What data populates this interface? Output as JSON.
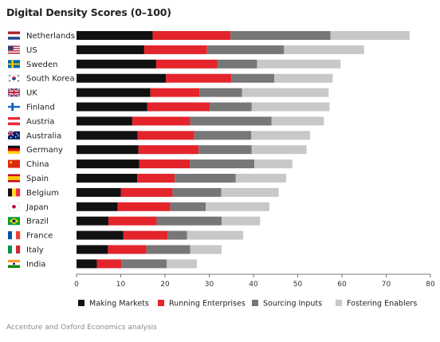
{
  "chart_data": {
    "type": "bar",
    "stacked": true,
    "orientation": "horizontal",
    "title": "Digital Density Scores (0–100)",
    "xlim": [
      0,
      80
    ],
    "xticks": [
      "0",
      "10",
      "20",
      "30",
      "40",
      "50",
      "60",
      "70",
      "80"
    ],
    "grid": false,
    "legend_position": "bottom",
    "source_note": "Accenture and Oxford Economics analysis",
    "categories": [
      "Netherlands",
      "US",
      "Sweden",
      "South Korea",
      "UK",
      "Finland",
      "Austria",
      "Australia",
      "Germany",
      "China",
      "Spain",
      "Belgium",
      "Japan",
      "Brazil",
      "France",
      "Italy",
      "India"
    ],
    "flag_icons": [
      "netherlands-flag-icon",
      "us-flag-icon",
      "sweden-flag-icon",
      "south-korea-flag-icon",
      "uk-flag-icon",
      "finland-flag-icon",
      "austria-flag-icon",
      "australia-flag-icon",
      "germany-flag-icon",
      "china-flag-icon",
      "spain-flag-icon",
      "belgium-flag-icon",
      "japan-flag-icon",
      "brazil-flag-icon",
      "france-flag-icon",
      "italy-flag-icon",
      "india-flag-icon"
    ],
    "series": [
      {
        "name": "Making Markets",
        "color": "#111111",
        "values": [
          17.2,
          15.3,
          18.0,
          20.2,
          16.7,
          16.0,
          12.6,
          13.8,
          14.0,
          14.2,
          13.7,
          10.0,
          9.3,
          7.2,
          10.6,
          7.1,
          4.6
        ]
      },
      {
        "name": "Running Enterprises",
        "color": "#e3242b",
        "values": [
          17.6,
          14.2,
          13.8,
          14.8,
          11.1,
          14.1,
          13.1,
          12.8,
          13.6,
          11.4,
          8.5,
          11.7,
          11.9,
          10.9,
          10.0,
          8.7,
          5.5
        ]
      },
      {
        "name": "Sourcing Inputs",
        "color": "#777777",
        "values": [
          22.6,
          17.4,
          9.0,
          9.7,
          9.6,
          9.5,
          18.4,
          12.9,
          12.0,
          14.6,
          13.8,
          11.0,
          8.0,
          14.7,
          4.4,
          9.9,
          10.3
        ]
      },
      {
        "name": "Fostering Enablers",
        "color": "#c8c8c8",
        "values": [
          17.9,
          18.1,
          18.9,
          13.2,
          19.6,
          17.6,
          11.8,
          13.3,
          12.4,
          8.6,
          11.4,
          13.0,
          14.4,
          8.7,
          12.7,
          7.1,
          6.8
        ]
      }
    ]
  }
}
